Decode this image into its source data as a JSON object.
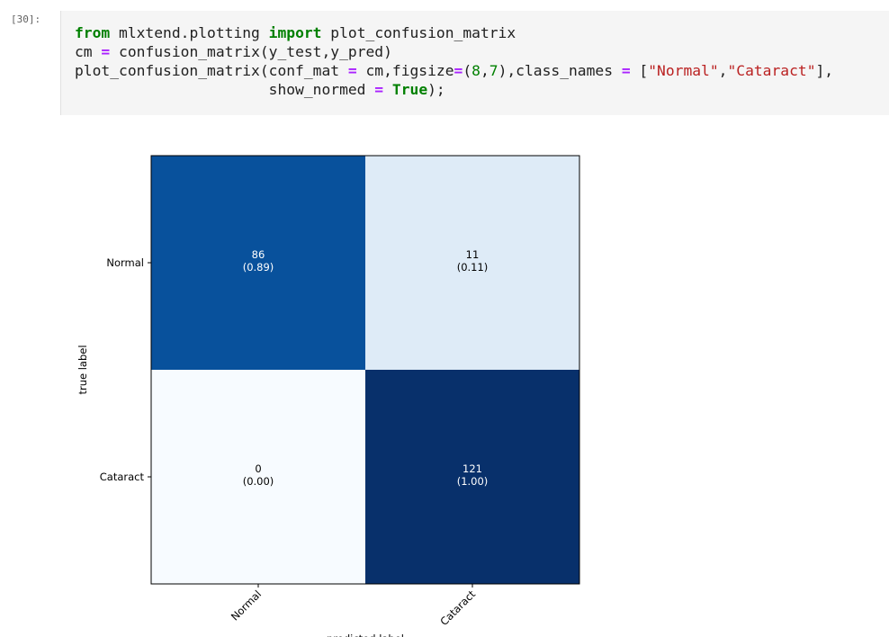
{
  "cell": {
    "prompt": "[30]:",
    "code_lines": [
      [
        {
          "t": "from",
          "c": "kw"
        },
        {
          "t": " mlxtend.plotting ",
          "c": ""
        },
        {
          "t": "import",
          "c": "kw"
        },
        {
          "t": " plot_confusion_matrix",
          "c": ""
        }
      ],
      [
        {
          "t": "cm ",
          "c": ""
        },
        {
          "t": "=",
          "c": "op"
        },
        {
          "t": " confusion_matrix(y_test,y_pred)",
          "c": ""
        }
      ],
      [
        {
          "t": "plot_confusion_matrix(conf_mat ",
          "c": ""
        },
        {
          "t": "=",
          "c": "op"
        },
        {
          "t": " cm,figsize",
          "c": ""
        },
        {
          "t": "=",
          "c": "op"
        },
        {
          "t": "(",
          "c": ""
        },
        {
          "t": "8",
          "c": "num"
        },
        {
          "t": ",",
          "c": ""
        },
        {
          "t": "7",
          "c": "num"
        },
        {
          "t": "),class_names ",
          "c": ""
        },
        {
          "t": "=",
          "c": "op"
        },
        {
          "t": " [",
          "c": ""
        },
        {
          "t": "\"Normal\"",
          "c": "str"
        },
        {
          "t": ",",
          "c": ""
        },
        {
          "t": "\"Cataract\"",
          "c": "str"
        },
        {
          "t": "],",
          "c": ""
        }
      ],
      [
        {
          "t": "                      show_normed ",
          "c": ""
        },
        {
          "t": "=",
          "c": "op"
        },
        {
          "t": " ",
          "c": ""
        },
        {
          "t": "True",
          "c": "kw"
        },
        {
          "t": ");",
          "c": ""
        }
      ]
    ]
  },
  "chart_data": {
    "type": "heatmap",
    "colormap": "Blues",
    "row_labels": [
      "Normal",
      "Cataract"
    ],
    "col_labels": [
      "Normal",
      "Cataract"
    ],
    "ylabel": "true label",
    "xlabel": "predicted label",
    "counts": [
      [
        86,
        11
      ],
      [
        0,
        121
      ]
    ],
    "normed": [
      [
        0.89,
        0.11
      ],
      [
        0.0,
        1.0
      ]
    ],
    "count_text": [
      [
        "86",
        "11"
      ],
      [
        "0",
        "121"
      ]
    ],
    "normed_text": [
      [
        "(0.89)",
        "(0.11)"
      ],
      [
        "(0.00)",
        "(1.00)"
      ]
    ],
    "cell_colors": [
      [
        "#08519c",
        "#deebf7"
      ],
      [
        "#f7fbff",
        "#08306b"
      ]
    ],
    "text_colors": [
      [
        "#ffffff",
        "#000000"
      ],
      [
        "#000000",
        "#ffffff"
      ]
    ]
  }
}
